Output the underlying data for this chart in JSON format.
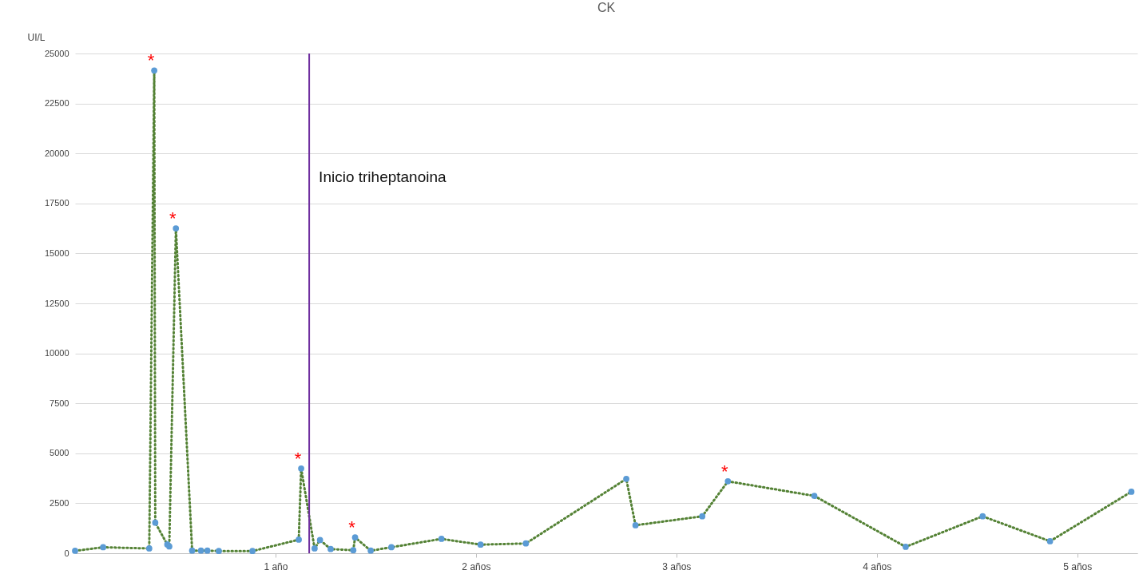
{
  "chart_data": {
    "type": "line",
    "title": "CK",
    "ylabel": "UI/L",
    "x": [
      0.0,
      0.14,
      0.37,
      0.395,
      0.4,
      0.46,
      0.47,
      0.503,
      0.584,
      0.628,
      0.66,
      0.717,
      0.885,
      1.116,
      1.128,
      1.195,
      1.222,
      1.275,
      1.388,
      1.397,
      1.475,
      1.578,
      1.828,
      2.023,
      2.249,
      2.75,
      2.796,
      3.129,
      3.257,
      3.688,
      4.144,
      4.528,
      4.864,
      5.27
    ],
    "series": [
      {
        "color": "#548235",
        "colors": [
          "#5b9bd5",
          "#5b9bd5",
          "#5b9bd5",
          "#5b9bd5",
          "#5b9bd5",
          "#5b9bd5",
          "#5b9bd5",
          "#5b9bd5",
          "#5b9bd5",
          "#5b9bd5",
          "#5b9bd5",
          "#5b9bd5",
          "#5b9bd5",
          "#5b9bd5",
          "#5b9bd5",
          "#5b9bd5",
          "#5b9bd5",
          "#5b9bd5",
          "#5b9bd5",
          "#5b9bd5",
          "#5b9bd5",
          "#5b9bd5",
          "#5b9bd5",
          "#5b9bd5",
          "#5b9bd5",
          "#5b9bd5",
          "#5b9bd5",
          "#5b9bd5",
          "#5b9bd5",
          "#5b9bd5",
          "#5b9bd5",
          "#5b9bd5",
          "#5b9bd5",
          "#5b9bd5"
        ],
        "values": [
          120,
          300,
          240,
          24150,
          1530,
          440,
          340,
          16250,
          130,
          130,
          130,
          110,
          110,
          680,
          4240,
          240,
          660,
          210,
          150,
          790,
          130,
          300,
          720,
          430,
          490,
          3720,
          1400,
          1850,
          3600,
          2870,
          320,
          1850,
          600,
          3080
        ]
      }
    ],
    "xlim": [
      0,
      5.3
    ],
    "xticks": [
      {
        "value": 1,
        "label": "1 año"
      },
      {
        "value": 2,
        "label": "2 años"
      },
      {
        "value": 3,
        "label": "3 años"
      },
      {
        "value": 4,
        "label": "4 años"
      },
      {
        "value": 5,
        "label": "5 años"
      }
    ],
    "ylim": [
      0,
      25000
    ],
    "yticks": [
      0,
      2500,
      5000,
      7500,
      10000,
      12500,
      15000,
      17500,
      20000,
      22500,
      25000
    ],
    "grid": "y",
    "marker": "circle",
    "line_style": "dotted",
    "ref_lines": [
      {
        "axis": "x",
        "value": 1.168,
        "label": "Inicio triheptanoina",
        "color": "#7030a0"
      }
    ],
    "annotations": [
      {
        "text": "*",
        "x": 0.395,
        "y": 24150
      },
      {
        "text": "*",
        "x": 0.503,
        "y": 16250
      },
      {
        "text": "*",
        "x": 1.128,
        "y": 4240
      },
      {
        "text": "*",
        "x": 1.397,
        "y": 790
      },
      {
        "text": "*",
        "x": 3.257,
        "y": 3600
      }
    ]
  }
}
